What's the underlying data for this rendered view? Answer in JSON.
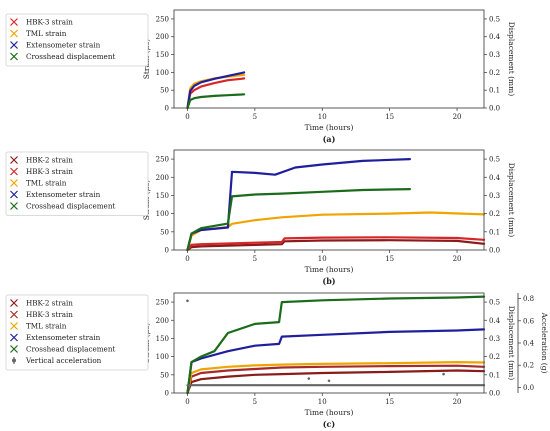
{
  "chart_data": [
    {
      "type": "line",
      "label": "(a)",
      "xlabel": "Time (hours)",
      "ylabel": "Strain (με)",
      "y2label": "Displacement (mm)",
      "xlim": [
        -1,
        22
      ],
      "ylim": [
        0,
        275
      ],
      "y2lim": [
        0,
        0.55
      ],
      "xticks": [
        0,
        5,
        10,
        15,
        20
      ],
      "yticks": [
        0,
        50,
        100,
        150,
        200,
        250
      ],
      "y2ticks": [
        0.0,
        0.1,
        0.2,
        0.3,
        0.4,
        0.5
      ],
      "y2tick_labels": [
        "0.0",
        "0.1",
        "0.2",
        "0.3",
        "0.4",
        "0.5"
      ],
      "legend_position": "left, outside",
      "series": [
        {
          "name": "HBK-3 strain",
          "color": "#d62728",
          "axis": "left",
          "x": [
            0,
            0.2,
            0.5,
            1,
            2,
            3,
            4,
            4.2
          ],
          "y": [
            0,
            40,
            50,
            60,
            70,
            78,
            82,
            83
          ]
        },
        {
          "name": "TML strain",
          "color": "#f0a400",
          "axis": "left",
          "x": [
            0,
            0.2,
            0.5,
            1,
            2,
            3,
            4,
            4.2
          ],
          "y": [
            0,
            55,
            68,
            75,
            83,
            88,
            92,
            93
          ]
        },
        {
          "name": "Extensometer strain",
          "color": "#1f1f9e",
          "axis": "left",
          "x": [
            0,
            0.2,
            0.5,
            1,
            2,
            3,
            4,
            4.2
          ],
          "y": [
            0,
            48,
            62,
            72,
            82,
            90,
            98,
            100
          ]
        },
        {
          "name": "Crosshead displacement",
          "color": "#1a6b1a",
          "axis": "right",
          "x": [
            0,
            0.2,
            0.5,
            1,
            2,
            3,
            4,
            4.2
          ],
          "y": [
            0,
            0.045,
            0.055,
            0.062,
            0.068,
            0.072,
            0.076,
            0.077
          ]
        }
      ]
    },
    {
      "type": "line",
      "label": "(b)",
      "xlabel": "Time (hours)",
      "ylabel": "Strain (με)",
      "y2label": "Displacement (mm)",
      "xlim": [
        -1,
        22
      ],
      "ylim": [
        0,
        275
      ],
      "y2lim": [
        0,
        0.55
      ],
      "xticks": [
        0,
        5,
        10,
        15,
        20
      ],
      "yticks": [
        0,
        50,
        100,
        150,
        200,
        250
      ],
      "y2ticks": [
        0.0,
        0.1,
        0.2,
        0.3,
        0.4,
        0.5
      ],
      "y2tick_labels": [
        "0.0",
        "0.1",
        "0.2",
        "0.3",
        "0.4",
        "0.5"
      ],
      "legend_position": "left, outside",
      "series": [
        {
          "name": "HBK-2 strain",
          "color": "#8b1a1a",
          "axis": "left",
          "x": [
            0,
            0.3,
            1,
            3,
            5,
            7,
            7.2,
            10,
            15,
            20,
            22
          ],
          "y": [
            0,
            8,
            10,
            12,
            14,
            16,
            24,
            26,
            27,
            25,
            17
          ]
        },
        {
          "name": "HBK-3 strain",
          "color": "#d62728",
          "axis": "left",
          "x": [
            0,
            0.3,
            1,
            3,
            5,
            7,
            7.2,
            10,
            15,
            20,
            22
          ],
          "y": [
            0,
            14,
            16,
            18,
            20,
            22,
            32,
            34,
            35,
            33,
            28
          ]
        },
        {
          "name": "TML strain",
          "color": "#f0a400",
          "axis": "left",
          "x": [
            0,
            0.3,
            1,
            3,
            3.3,
            5,
            7,
            10,
            15,
            18,
            22
          ],
          "y": [
            0,
            40,
            55,
            63,
            72,
            82,
            90,
            97,
            100,
            103,
            98
          ]
        },
        {
          "name": "Extensometer strain",
          "color": "#1f1f9e",
          "axis": "left",
          "x": [
            0,
            0.3,
            1,
            3,
            3.3,
            5,
            6.5,
            8,
            10,
            13,
            16.5
          ],
          "y": [
            0,
            45,
            55,
            62,
            215,
            212,
            207,
            227,
            235,
            245,
            250
          ]
        },
        {
          "name": "Crosshead displacement",
          "color": "#1a6b1a",
          "axis": "right",
          "x": [
            0,
            0.3,
            1,
            3,
            3.3,
            5,
            7,
            10,
            13,
            16.5
          ],
          "y": [
            0,
            0.09,
            0.12,
            0.145,
            0.295,
            0.305,
            0.31,
            0.32,
            0.33,
            0.335
          ]
        }
      ]
    },
    {
      "type": "line",
      "label": "(c)",
      "xlabel": "Time (hours)",
      "ylabel": "Strain (με)",
      "y2label": "Displacement (mm)",
      "y3label": "Acceleration (g)",
      "xlim": [
        -1,
        22
      ],
      "ylim": [
        0,
        275
      ],
      "y2lim": [
        0,
        0.55
      ],
      "y3lim": [
        -0.05,
        0.85
      ],
      "xticks": [
        0,
        5,
        10,
        15,
        20
      ],
      "yticks": [
        0,
        50,
        100,
        150,
        200,
        250
      ],
      "y2ticks": [
        0.0,
        0.1,
        0.2,
        0.3,
        0.4,
        0.5
      ],
      "y2tick_labels": [
        "0.0",
        "0.1",
        "0.2",
        "0.3",
        "0.4",
        "0.5"
      ],
      "y3ticks": [
        0.0,
        0.2,
        0.4,
        0.6,
        0.8
      ],
      "y3tick_labels": [
        "0.0",
        "0.2",
        "0.4",
        "0.6",
        "0.8"
      ],
      "legend_position": "left, outside",
      "series": [
        {
          "name": "HBK-2 strain",
          "color": "#8b1a1a",
          "axis": "left",
          "x": [
            0,
            0.3,
            1,
            3,
            5,
            7,
            10,
            15,
            20,
            22
          ],
          "y": [
            0,
            30,
            38,
            45,
            50,
            52,
            55,
            58,
            62,
            60
          ]
        },
        {
          "name": "HBK-3 strain",
          "color": "#a52a2a",
          "axis": "left",
          "x": [
            0,
            0.3,
            1,
            3,
            5,
            7,
            10,
            15,
            20,
            22
          ],
          "y": [
            0,
            45,
            55,
            62,
            66,
            70,
            72,
            74,
            75,
            72
          ]
        },
        {
          "name": "TML strain",
          "color": "#f0a400",
          "axis": "left",
          "x": [
            0,
            0.3,
            1,
            3,
            5,
            7,
            10,
            15,
            20,
            22
          ],
          "y": [
            0,
            55,
            65,
            72,
            76,
            78,
            80,
            82,
            85,
            84
          ]
        },
        {
          "name": "Extensometer strain",
          "color": "#1f1f9e",
          "axis": "left",
          "x": [
            0,
            0.3,
            1,
            3,
            5,
            6.8,
            7,
            10,
            15,
            20,
            22
          ],
          "y": [
            0,
            85,
            95,
            115,
            130,
            135,
            155,
            160,
            168,
            172,
            175
          ]
        },
        {
          "name": "Crosshead displacement",
          "color": "#1a6b1a",
          "axis": "right",
          "x": [
            0,
            0.3,
            1,
            2,
            3,
            5,
            6.8,
            7,
            10,
            15,
            20,
            22
          ],
          "y": [
            0,
            0.17,
            0.2,
            0.23,
            0.33,
            0.38,
            0.39,
            0.5,
            0.51,
            0.52,
            0.525,
            0.53
          ]
        },
        {
          "name": "Vertical acceleration",
          "color": "#666666",
          "axis": "right2",
          "x": [
            0,
            1,
            5,
            10,
            15,
            20,
            22
          ],
          "y": [
            0.02,
            0.02,
            0.02,
            0.02,
            0.02,
            0.02,
            0.02
          ],
          "outliers_x": [
            0,
            9,
            10.5,
            19
          ],
          "outliers_y": [
            0.78,
            0.08,
            0.06,
            0.12
          ]
        }
      ]
    }
  ]
}
